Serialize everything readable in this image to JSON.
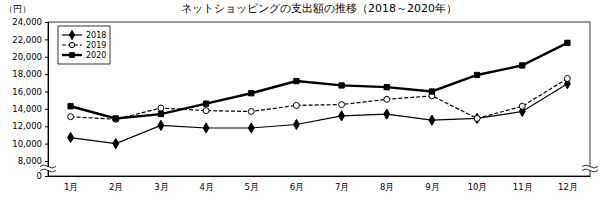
{
  "chart_data": {
    "type": "line",
    "title": "ネットショッピングの支出額の推移（2018～2020年）",
    "y_label": "（円）",
    "categories": [
      "1月",
      "2月",
      "3月",
      "4月",
      "5月",
      "6月",
      "7月",
      "8月",
      "9月",
      "10月",
      "11月",
      "12月"
    ],
    "series": [
      {
        "name": "2018",
        "color": "#000000",
        "marker": "diamond",
        "line_style": "solid",
        "values": [
          10700,
          10000,
          12100,
          11800,
          11800,
          12200,
          13200,
          13400,
          12700,
          12900,
          13700,
          16900
        ]
      },
      {
        "name": "2019",
        "color": "#000000",
        "marker": "circle_open",
        "line_style": "dashed",
        "values": [
          13100,
          12800,
          14100,
          13800,
          13700,
          14400,
          14500,
          15100,
          15500,
          12900,
          14300,
          17500
        ]
      },
      {
        "name": "2020",
        "color": "#000000",
        "marker": "square",
        "line_style": "solid",
        "values": [
          14300,
          12900,
          13400,
          14600,
          15800,
          17200,
          16700,
          16500,
          16000,
          17900,
          19000,
          21600
        ]
      }
    ],
    "ylim": [
      0,
      24000
    ],
    "yticks": [
      0,
      {
        "value": 8000,
        "label": "8,000"
      },
      {
        "value": 10000,
        "label": "10,000"
      },
      {
        "value": 12000,
        "label": "12,000"
      },
      {
        "value": 14000,
        "label": "14,000"
      },
      {
        "value": 16000,
        "label": "16,000"
      },
      {
        "value": 18000,
        "label": "18,000"
      },
      {
        "value": 20000,
        "label": "20,000"
      },
      {
        "value": 22000,
        "label": "22,000"
      },
      {
        "value": 24000,
        "label": "24,000"
      }
    ],
    "grid": false,
    "legend": "upper left"
  }
}
